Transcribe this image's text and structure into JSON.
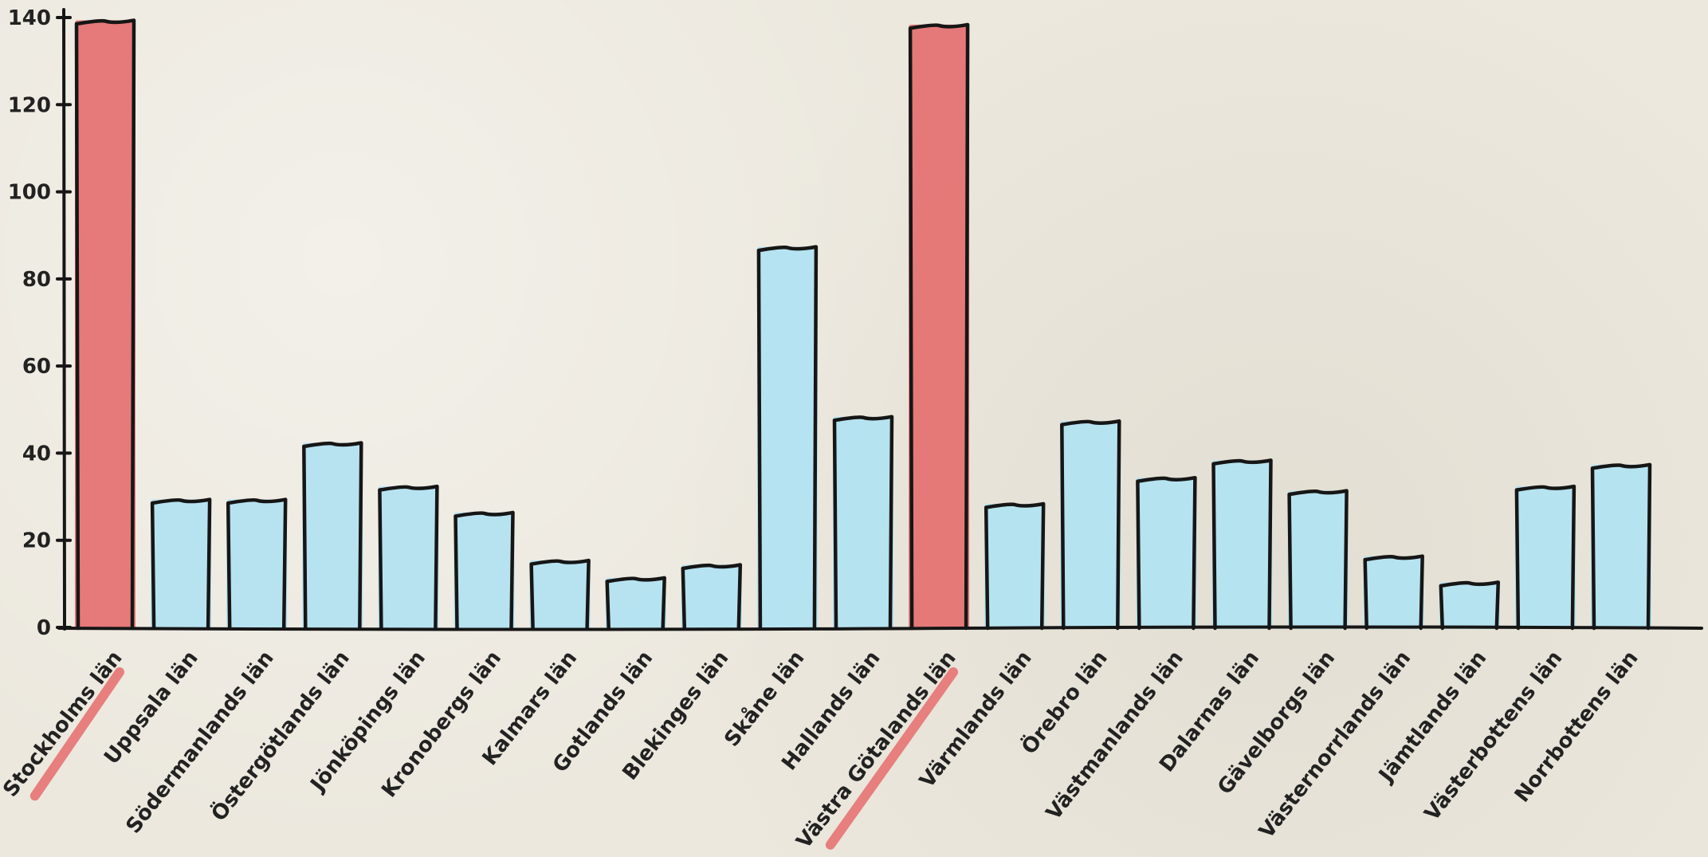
{
  "chart_data": {
    "type": "bar",
    "categories": [
      "Stockholms län",
      "Uppsala län",
      "Södermanlands län",
      "Östergötlands län",
      "Jönköpings län",
      "Kronobergs län",
      "Kalmars län",
      "Gotlands län",
      "Blekinges län",
      "Skåne län",
      "Hallands län",
      "Västra Götalands län",
      "Värmlands län",
      "Örebro län",
      "Västmanlands län",
      "Dalarnas län",
      "Gävelborgs län",
      "Västernorrlands län",
      "Jämtlands län",
      "Västerbottens län",
      "Norrbottens län"
    ],
    "values": [
      139,
      29,
      29,
      42,
      32,
      26,
      15,
      11,
      14,
      87,
      48,
      138,
      28,
      47,
      34,
      38,
      31,
      16,
      10,
      32,
      37
    ],
    "highlighted": [
      "Stockholms län",
      "Västra Götalands län"
    ],
    "ylim": [
      0,
      140
    ],
    "yticks": [
      0,
      20,
      40,
      60,
      80,
      100,
      120,
      140
    ],
    "title": "",
    "xlabel": "",
    "ylabel": "",
    "grid": false,
    "colors": {
      "default_bar": "#b3e3f1",
      "highlight_bar": "#e57373",
      "outline": "#161616",
      "background": "#ece8de",
      "text": "#222222"
    }
  }
}
